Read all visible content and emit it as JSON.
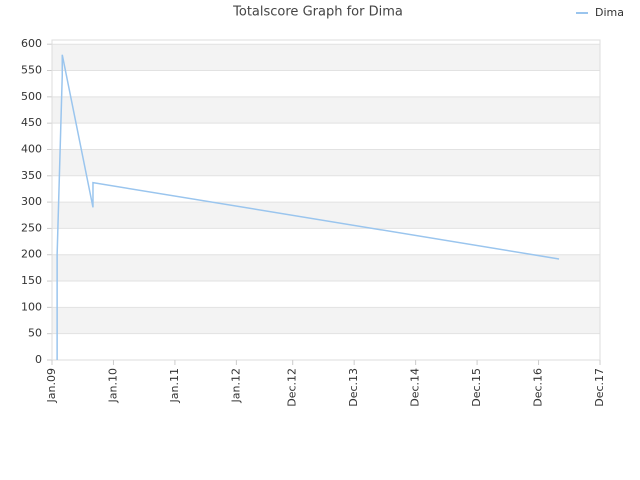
{
  "chart_data": {
    "type": "line",
    "title": "Totalscore Graph for Dima",
    "x": [
      "2009-02",
      "2009-02",
      "2009-02",
      "2009-02",
      "2009-02",
      "2009-02",
      "2009-03",
      "2009-03",
      "2009-09",
      "2009-09",
      "2017-04"
    ],
    "series": [
      {
        "name": "Dima",
        "color": "#9ac5ee",
        "values": [
          0,
          5,
          55,
          75,
          180,
          200,
          540,
          580,
          290,
          337,
          192
        ]
      }
    ],
    "xlim": [
      "2009-01",
      "2017-12"
    ],
    "xticks": [
      {
        "value": "2009-01",
        "label": "Jan.09"
      },
      {
        "value": "2010-01",
        "label": "Jan.10"
      },
      {
        "value": "2011-01",
        "label": "Jan.11"
      },
      {
        "value": "2012-01",
        "label": "Jan.12"
      },
      {
        "value": "2012-12",
        "label": "Dec.12"
      },
      {
        "value": "2013-12",
        "label": "Dec.13"
      },
      {
        "value": "2014-12",
        "label": "Dec.14"
      },
      {
        "value": "2015-12",
        "label": "Dec.15"
      },
      {
        "value": "2016-12",
        "label": "Dec.16"
      },
      {
        "value": "2017-12",
        "label": "Dec.17"
      }
    ],
    "ylim": [
      0,
      608
    ],
    "yticks": [
      0,
      50,
      100,
      150,
      200,
      250,
      300,
      350,
      400,
      450,
      500,
      550,
      600
    ],
    "grid": true,
    "legend": "top-right"
  }
}
